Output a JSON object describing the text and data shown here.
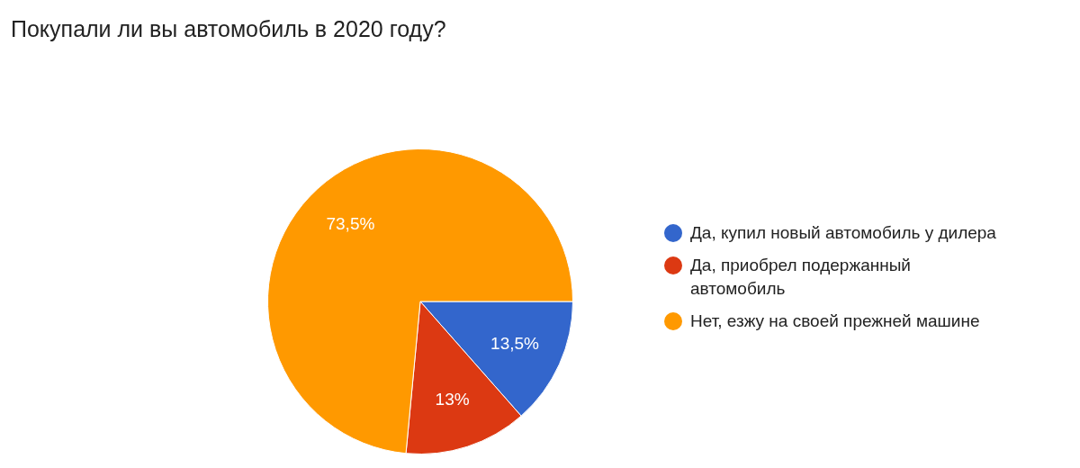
{
  "chart_data": {
    "type": "pie",
    "title": "Покупали ли вы автомобиль в 2020 году?",
    "categories": [
      "Да, купил новый автомобиль у дилера",
      "Да, приобрел подержанный автомобиль",
      "Нет, езжу на своей прежней машине"
    ],
    "values": [
      13.5,
      13,
      73.5
    ],
    "value_labels": [
      "13,5%",
      "13%",
      "73,5%"
    ],
    "colors": [
      "#3366cc",
      "#dc3912",
      "#ff9900"
    ],
    "legend": "right"
  }
}
